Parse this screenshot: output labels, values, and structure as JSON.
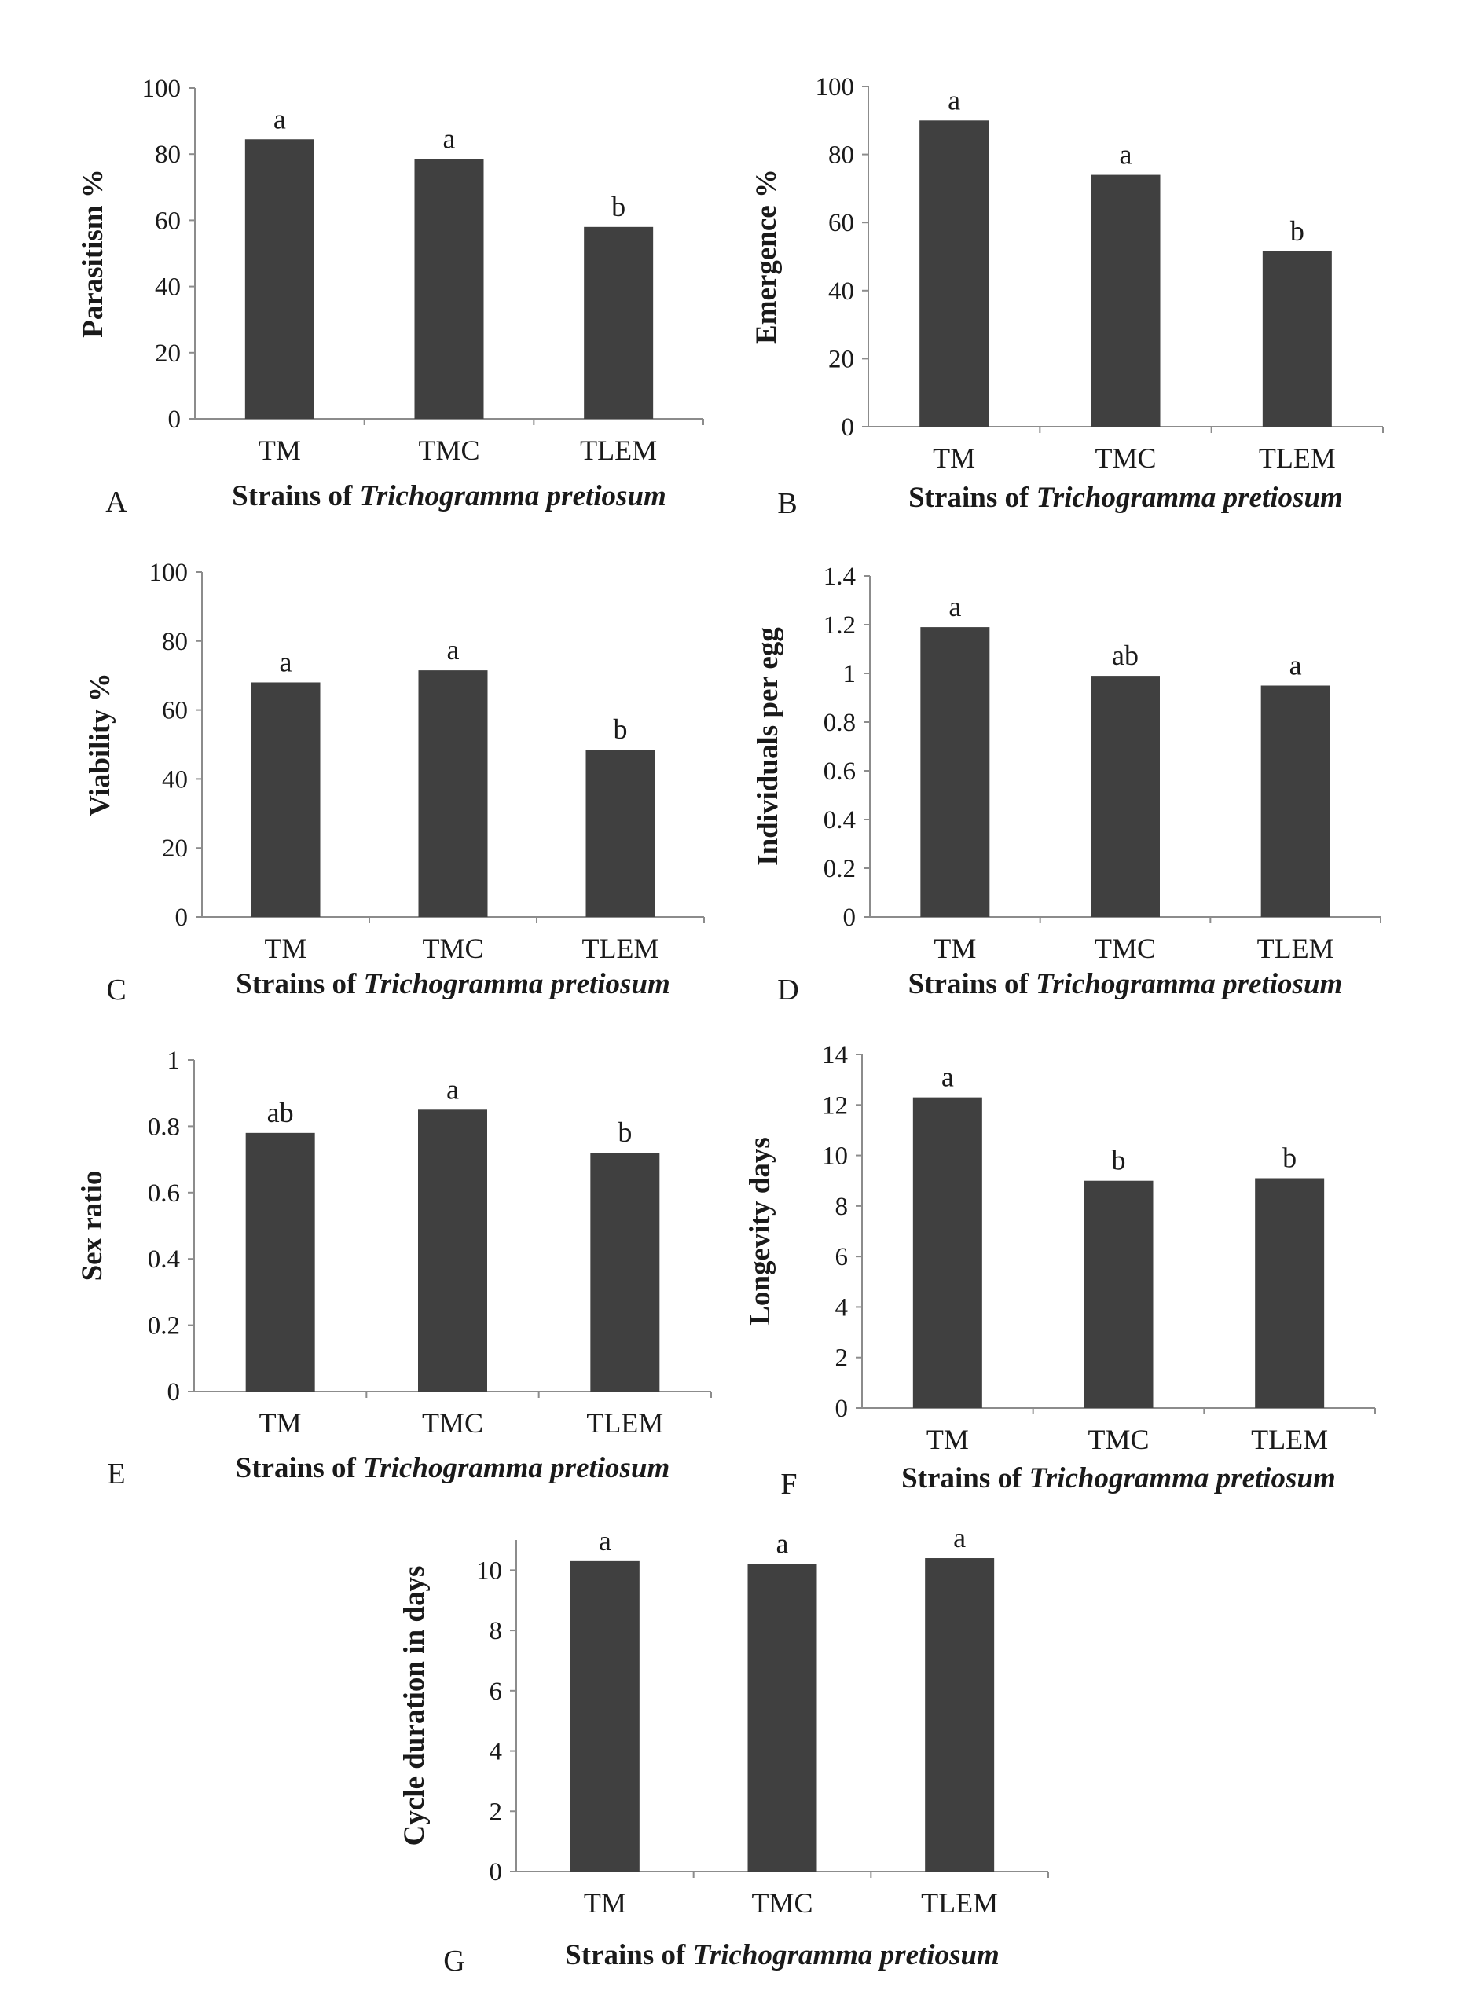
{
  "figure": {
    "xlabel_prefix": "Strains of ",
    "xlabel_species": "Trichogramma pretiosum",
    "bar_color": "#404040"
  },
  "chart_data": [
    {
      "panel": "A",
      "type": "bar",
      "categories": [
        "TM",
        "TMC",
        "TLEM"
      ],
      "values": [
        84.5,
        78.5,
        58
      ],
      "labels": [
        "a",
        "a",
        "b"
      ],
      "ylabel": "Parasitism %",
      "xlabel": "Strains of Trichogramma pretiosum",
      "ylim": [
        0,
        100
      ],
      "yticks": [
        "0",
        "20",
        "40",
        "60",
        "80",
        "100"
      ]
    },
    {
      "panel": "B",
      "type": "bar",
      "categories": [
        "TM",
        "TMC",
        "TLEM"
      ],
      "values": [
        90,
        74,
        51.5
      ],
      "labels": [
        "a",
        "a",
        "b"
      ],
      "ylabel": "Emergence %",
      "xlabel": "Strains of Trichogramma pretiosum",
      "ylim": [
        0,
        100
      ],
      "yticks": [
        "0",
        "20",
        "40",
        "60",
        "80",
        "100"
      ]
    },
    {
      "panel": "C",
      "type": "bar",
      "categories": [
        "TM",
        "TMC",
        "TLEM"
      ],
      "values": [
        68,
        71.5,
        48.5
      ],
      "labels": [
        "a",
        "a",
        "b"
      ],
      "ylabel": "Viability %",
      "xlabel": "Strains of Trichogramma pretiosum",
      "ylim": [
        0,
        100
      ],
      "yticks": [
        "0",
        "20",
        "40",
        "60",
        "80",
        "100"
      ]
    },
    {
      "panel": "D",
      "type": "bar",
      "categories": [
        "TM",
        "TMC",
        "TLEM"
      ],
      "values": [
        1.19,
        0.99,
        0.95
      ],
      "labels": [
        "a",
        "ab",
        "a"
      ],
      "ylabel": "Individuals per egg",
      "xlabel": "Strains of Trichogramma pretiosum",
      "ylim": [
        0,
        1.4
      ],
      "yticks": [
        "0",
        "0.2",
        "0.4",
        "0.6",
        "0.8",
        "1",
        "1.2",
        "1.4"
      ]
    },
    {
      "panel": "E",
      "type": "bar",
      "categories": [
        "TM",
        "TMC",
        "TLEM"
      ],
      "values": [
        0.78,
        0.85,
        0.72
      ],
      "labels": [
        "ab",
        "a",
        "b"
      ],
      "ylabel": "Sex ratio",
      "xlabel": "Strains of Trichogramma pretiosum",
      "ylim": [
        0,
        1
      ],
      "yticks": [
        "0",
        "0.2",
        "0.4",
        "0.6",
        "0.8",
        "1"
      ]
    },
    {
      "panel": "F",
      "type": "bar",
      "categories": [
        "TM",
        "TMC",
        "TLEM"
      ],
      "values": [
        12.3,
        9.0,
        9.1
      ],
      "labels": [
        "a",
        "b",
        "b"
      ],
      "ylabel": "Longevity days",
      "xlabel": "Strains of Trichogramma pretiosum",
      "ylim": [
        0,
        14
      ],
      "yticks": [
        "0",
        "2",
        "4",
        "6",
        "8",
        "10",
        "12",
        "14"
      ]
    },
    {
      "panel": "G",
      "type": "bar",
      "categories": [
        "TM",
        "TMC",
        "TLEM"
      ],
      "values": [
        10.3,
        10.2,
        10.4
      ],
      "labels": [
        "a",
        "a",
        "a"
      ],
      "ylabel": "Cycle duration in days",
      "xlabel": "Strains of Trichogramma pretiosum",
      "ylim": [
        0,
        11
      ],
      "yticks": [
        "0",
        "2",
        "4",
        "6",
        "8",
        "10"
      ]
    }
  ]
}
